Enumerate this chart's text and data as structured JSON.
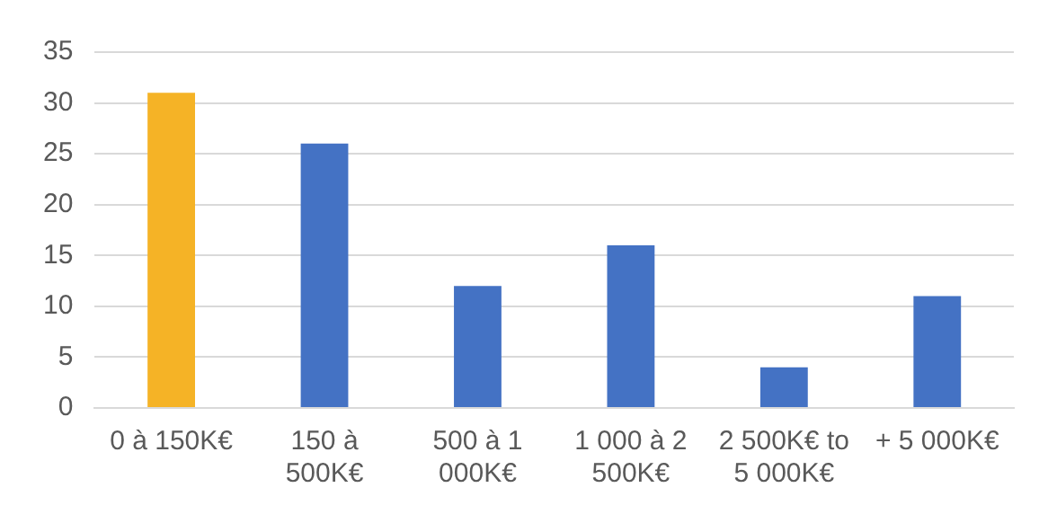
{
  "chart_data": {
    "type": "bar",
    "categories": [
      "0 à 150K€",
      "150 à 500K€",
      "500 à 1 000K€",
      "1 000 à 2 500K€",
      "2 500K€ to 5 000K€",
      "+ 5 000K€"
    ],
    "values": [
      31,
      26,
      12,
      16,
      4,
      11
    ],
    "colors": [
      "#f5b326",
      "#4472c4",
      "#4472c4",
      "#4472c4",
      "#4472c4",
      "#4472c4"
    ],
    "ylim": [
      0,
      35
    ],
    "yticks": [
      0,
      5,
      10,
      15,
      20,
      25,
      30,
      35
    ],
    "grid": "y",
    "legend": false
  }
}
